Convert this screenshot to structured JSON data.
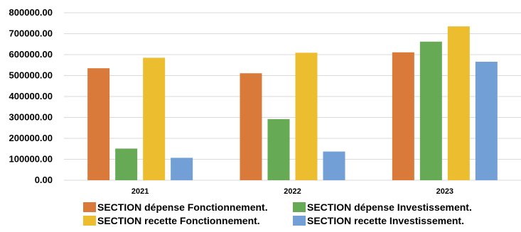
{
  "chart_data": {
    "type": "bar",
    "title": "",
    "xlabel": "",
    "ylabel": "",
    "categories": [
      "2021",
      "2022",
      "2023"
    ],
    "ylim": [
      0,
      800000
    ],
    "yticks": [
      "0.00",
      "100000.00",
      "200000.00",
      "300000.00",
      "400000.00",
      "500000.00",
      "600000.00",
      "700000.00",
      "800000.00"
    ],
    "grid": true,
    "legend_position": "bottom",
    "series": [
      {
        "name": "SECTION dépense Fonctionnement.",
        "color": "#d9793a",
        "values": [
          535000,
          511000,
          611000
        ]
      },
      {
        "name": "SECTION dépense Investissement.",
        "color": "#66aa55",
        "values": [
          151000,
          292000,
          662000
        ]
      },
      {
        "name": "SECTION recette Fonctionnement.",
        "color": "#ecbd2f",
        "values": [
          585000,
          609000,
          735000
        ]
      },
      {
        "name": "SECTION recette Investissement.",
        "color": "#729fd6",
        "values": [
          107000,
          137000,
          566000
        ]
      }
    ]
  }
}
